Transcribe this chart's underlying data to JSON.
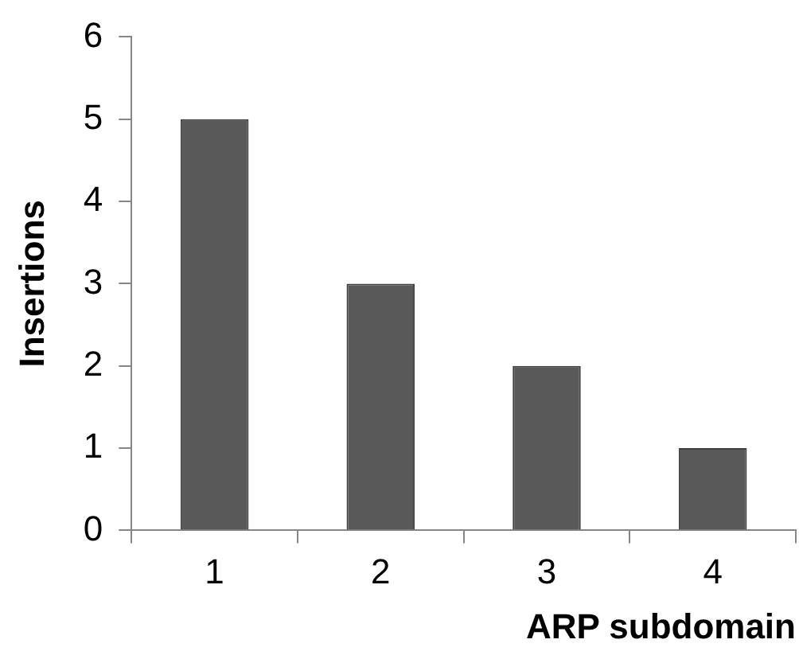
{
  "chart_data": {
    "type": "bar",
    "xlabel": "ARP subdomain",
    "ylabel": "Insertions",
    "categories": [
      "1",
      "2",
      "3",
      "4"
    ],
    "values": [
      5,
      3,
      2,
      1
    ],
    "color": "#595959",
    "ylim": [
      0,
      6
    ],
    "yticks": [
      0,
      1,
      2,
      3,
      4,
      5,
      6
    ],
    "grid": false,
    "legend": false
  }
}
